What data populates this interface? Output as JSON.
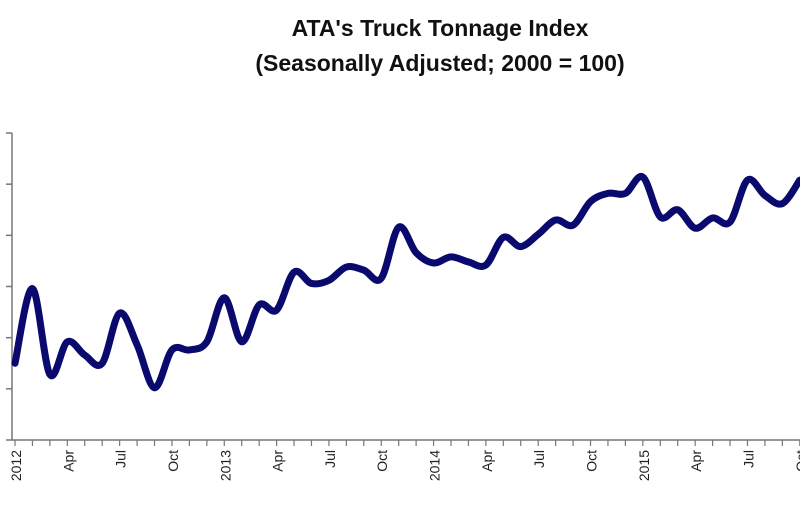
{
  "chart_data": {
    "type": "line",
    "title": "ATA's Truck Tonnage Index",
    "subtitle": "(Seasonally Adjusted; 2000 = 100)",
    "xlabel": "",
    "ylabel": "",
    "ylim": [
      110,
      140
    ],
    "y_ticks": [
      110,
      115,
      120,
      125,
      130,
      135,
      140
    ],
    "y_tick_labels_shown": false,
    "grid": false,
    "line_color": "#0a0a6e",
    "x_tick_labels": [
      {
        "month": "2012-01",
        "label": "2012"
      },
      {
        "month": "2012-04",
        "label": "Apr"
      },
      {
        "month": "2012-07",
        "label": "Jul"
      },
      {
        "month": "2012-10",
        "label": "Oct"
      },
      {
        "month": "2013-01",
        "label": "2013"
      },
      {
        "month": "2013-04",
        "label": "Apr"
      },
      {
        "month": "2013-07",
        "label": "Jul"
      },
      {
        "month": "2013-10",
        "label": "Oct"
      },
      {
        "month": "2014-01",
        "label": "2014"
      },
      {
        "month": "2014-04",
        "label": "Apr"
      },
      {
        "month": "2014-07",
        "label": "Jul"
      },
      {
        "month": "2014-10",
        "label": "Oct"
      },
      {
        "month": "2015-01",
        "label": "2015"
      },
      {
        "month": "2015-04",
        "label": "Apr"
      },
      {
        "month": "2015-07",
        "label": "Jul"
      },
      {
        "month": "2015-10",
        "label": "Oct"
      }
    ],
    "x": [
      "2012-01",
      "2012-02",
      "2012-03",
      "2012-04",
      "2012-05",
      "2012-06",
      "2012-07",
      "2012-08",
      "2012-09",
      "2012-10",
      "2012-11",
      "2012-12",
      "2013-01",
      "2013-02",
      "2013-03",
      "2013-04",
      "2013-05",
      "2013-06",
      "2013-07",
      "2013-08",
      "2013-09",
      "2013-10",
      "2013-11",
      "2013-12",
      "2014-01",
      "2014-02",
      "2014-03",
      "2014-04",
      "2014-05",
      "2014-06",
      "2014-07",
      "2014-08",
      "2014-09",
      "2014-10",
      "2014-11",
      "2014-12",
      "2015-01",
      "2015-02",
      "2015-03",
      "2015-04",
      "2015-05",
      "2015-06",
      "2015-07",
      "2015-08",
      "2015-09",
      "2015-10"
    ],
    "values": [
      117.5,
      124.8,
      116.4,
      119.6,
      118.3,
      117.5,
      122.4,
      119.3,
      115.1,
      118.8,
      118.8,
      119.6,
      123.9,
      119.6,
      123.2,
      122.7,
      126.4,
      125.3,
      125.6,
      126.9,
      126.6,
      125.8,
      130.8,
      128.3,
      127.3,
      127.9,
      127.4,
      127.1,
      129.8,
      128.9,
      130.1,
      131.5,
      131.0,
      133.3,
      134.1,
      134.1,
      135.7,
      131.8,
      132.5,
      130.7,
      131.7,
      131.3,
      135.4,
      133.9,
      133.1,
      135.4
    ]
  }
}
